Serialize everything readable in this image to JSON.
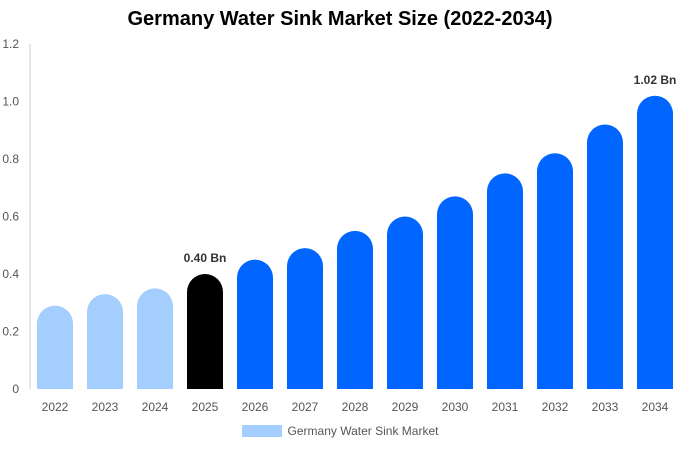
{
  "chart_data": {
    "type": "bar",
    "title": "Germany Water Sink Market Size (2022-2034)",
    "xlabel": "",
    "ylabel": "",
    "ylim": [
      0,
      1.2
    ],
    "yticks": [
      "0",
      "0.2",
      "0.4",
      "0.6",
      "0.8",
      "1.0",
      "1.2"
    ],
    "categories": [
      "2022",
      "2023",
      "2024",
      "2025",
      "2026",
      "2027",
      "2028",
      "2029",
      "2030",
      "2031",
      "2032",
      "2033",
      "2034"
    ],
    "series": [
      {
        "name": "Germany Water Sink Market",
        "values": [
          0.29,
          0.33,
          0.35,
          0.4,
          0.45,
          0.49,
          0.55,
          0.6,
          0.67,
          0.75,
          0.82,
          0.92,
          1.02
        ]
      }
    ],
    "bar_kinds": [
      "historical",
      "historical",
      "historical",
      "base",
      "forecast",
      "forecast",
      "forecast",
      "forecast",
      "forecast",
      "forecast",
      "forecast",
      "forecast",
      "forecast"
    ],
    "data_labels": [
      {
        "index": 3,
        "text": "0.40 Bn"
      },
      {
        "index": 12,
        "text": "1.02 Bn"
      }
    ],
    "grid": false,
    "legend_position": "bottom-center",
    "colors": {
      "historical": "#a3cefd",
      "base": "#000000",
      "forecast": "#0066ff",
      "axis": "#cccccc"
    }
  }
}
